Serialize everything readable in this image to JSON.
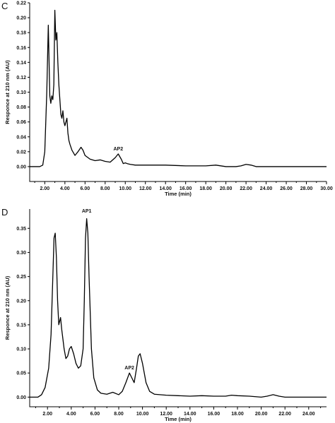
{
  "chart_data": [
    {
      "type": "line",
      "panel_label": "C",
      "xlabel": "Time (min)",
      "ylabel": "Responce at 210 nm (AU)",
      "xlim": [
        0.5,
        30.0
      ],
      "ylim": [
        -0.02,
        0.22
      ],
      "x_ticks": [
        "2.00",
        "4.00",
        "6.00",
        "8.00",
        "10.00",
        "12.00",
        "14.00",
        "16.00",
        "18.00",
        "20.00",
        "22.00",
        "24.00",
        "26.00",
        "28.00",
        "30.00"
      ],
      "y_ticks": [
        "0.00",
        "0.02",
        "0.04",
        "0.06",
        "0.08",
        "0.10",
        "0.12",
        "0.14",
        "0.16",
        "0.18",
        "0.20",
        "0.22"
      ],
      "annotations": [
        {
          "text": "AP2",
          "x": 9.3,
          "y": 0.017
        }
      ],
      "series": [
        {
          "x": [
            0.5,
            1.5,
            1.8,
            2.0,
            2.2,
            2.35,
            2.5,
            2.6,
            2.7,
            2.8,
            2.9,
            3.0,
            3.1,
            3.2,
            3.3,
            3.4,
            3.5,
            3.6,
            3.7,
            3.8,
            3.9,
            4.0,
            4.1,
            4.2,
            4.3,
            4.4,
            4.5,
            4.7,
            5.0,
            5.3,
            5.6,
            5.8,
            6.0,
            6.5,
            7.0,
            7.5,
            8.0,
            8.5,
            9.0,
            9.3,
            9.6,
            9.8,
            10.0,
            10.2,
            10.5,
            11.0,
            12.0,
            14.0,
            16.0,
            18.0,
            19.0,
            20.0,
            21.0,
            21.5,
            22.0,
            22.5,
            23.0,
            24.0,
            26.0,
            28.0,
            30.0
          ],
          "y": [
            0.0,
            0.0,
            0.002,
            0.02,
            0.1,
            0.19,
            0.095,
            0.085,
            0.095,
            0.09,
            0.11,
            0.21,
            0.17,
            0.18,
            0.14,
            0.11,
            0.09,
            0.07,
            0.065,
            0.075,
            0.06,
            0.055,
            0.06,
            0.065,
            0.045,
            0.035,
            0.03,
            0.022,
            0.015,
            0.02,
            0.026,
            0.022,
            0.015,
            0.01,
            0.008,
            0.009,
            0.007,
            0.006,
            0.012,
            0.017,
            0.01,
            0.004,
            0.005,
            0.004,
            0.003,
            0.002,
            0.002,
            0.002,
            0.001,
            0.001,
            0.002,
            0.0,
            0.0,
            0.001,
            0.003,
            0.002,
            0.0,
            0.0,
            0.0,
            0.0,
            0.0
          ]
        }
      ]
    },
    {
      "type": "line",
      "panel_label": "D",
      "xlabel": "Time (min)",
      "ylabel": "Responce at 210 nm (AU)",
      "xlim": [
        0.5,
        25.5
      ],
      "ylim": [
        -0.02,
        0.39
      ],
      "x_ticks": [
        "2.00",
        "4.00",
        "6.00",
        "8.00",
        "10.00",
        "12.00",
        "14.00",
        "16.00",
        "18.00",
        "20.00",
        "22.00",
        "24.00"
      ],
      "y_ticks": [
        "0.00",
        "0.05",
        "0.10",
        "0.15",
        "0.20",
        "0.25",
        "0.30",
        "0.35"
      ],
      "annotations": [
        {
          "text": "AP1",
          "x": 5.3,
          "y": 0.375
        },
        {
          "text": "AP2",
          "x": 8.9,
          "y": 0.05
        }
      ],
      "series": [
        {
          "x": [
            0.5,
            1.2,
            1.5,
            1.8,
            2.1,
            2.3,
            2.45,
            2.55,
            2.65,
            2.75,
            2.85,
            2.95,
            3.1,
            3.2,
            3.3,
            3.4,
            3.55,
            3.7,
            3.85,
            4.0,
            4.2,
            4.4,
            4.6,
            4.8,
            5.0,
            5.1,
            5.2,
            5.3,
            5.4,
            5.5,
            5.7,
            5.9,
            6.2,
            6.5,
            7.0,
            7.5,
            8.0,
            8.3,
            8.6,
            8.9,
            9.1,
            9.3,
            9.5,
            9.65,
            9.8,
            10.0,
            10.3,
            10.6,
            11.0,
            12.0,
            13.0,
            14.0,
            15.0,
            16.0,
            17.0,
            17.5,
            18.0,
            19.0,
            20.0,
            20.5,
            21.0,
            21.5,
            22.0,
            23.0,
            24.0,
            25.5
          ],
          "y": [
            0.0,
            0.0,
            0.005,
            0.02,
            0.06,
            0.13,
            0.25,
            0.33,
            0.34,
            0.29,
            0.2,
            0.15,
            0.165,
            0.14,
            0.12,
            0.1,
            0.08,
            0.085,
            0.1,
            0.105,
            0.09,
            0.07,
            0.06,
            0.065,
            0.1,
            0.2,
            0.33,
            0.37,
            0.34,
            0.25,
            0.1,
            0.04,
            0.015,
            0.008,
            0.006,
            0.01,
            0.005,
            0.012,
            0.03,
            0.05,
            0.04,
            0.03,
            0.06,
            0.085,
            0.09,
            0.07,
            0.03,
            0.012,
            0.006,
            0.004,
            0.003,
            0.002,
            0.003,
            0.002,
            0.002,
            0.004,
            0.003,
            0.002,
            0.0,
            0.002,
            0.005,
            0.002,
            0.0,
            0.0,
            0.0,
            0.0
          ]
        }
      ]
    }
  ]
}
